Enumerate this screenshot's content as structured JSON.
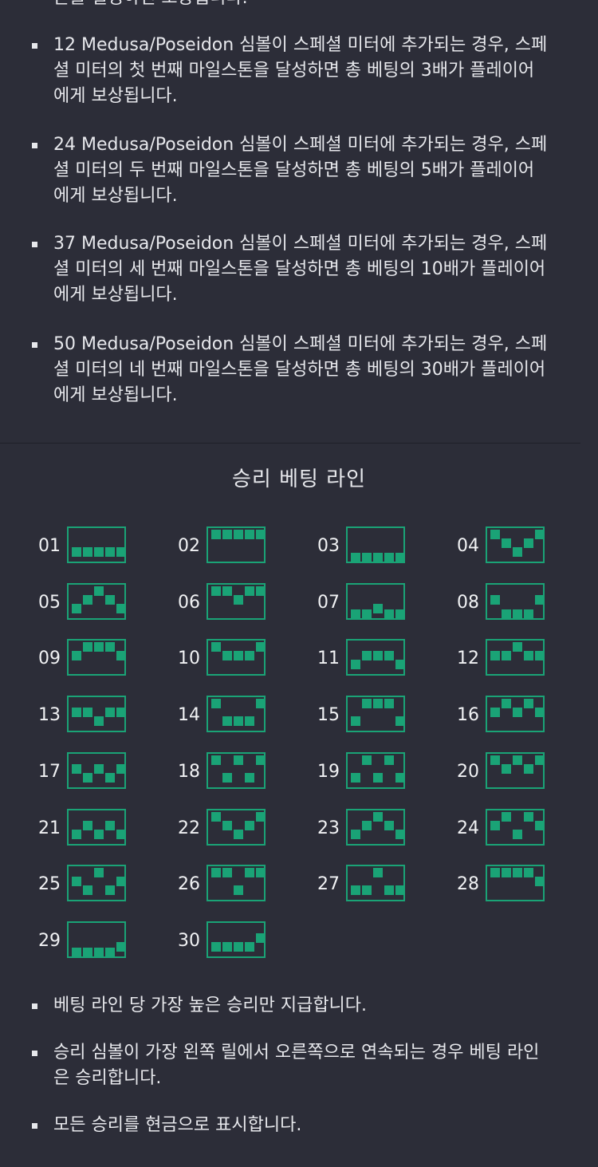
{
  "top_partial": "는을 절정하면 보상됩니다.",
  "rules_top": [
    "12 Medusa/Poseidon 심볼이 스페셜 미터에 추가되는 경우, 스페셜 미터의 첫 번째 마일스톤을 달성하면 총 베팅의 3배가 플레이어에게 보상됩니다.",
    "24 Medusa/Poseidon 심볼이 스페셜 미터에 추가되는 경우, 스페셜 미터의 두 번째 마일스톤을 달성하면 총 베팅의 5배가 플레이어에게 보상됩니다.",
    "37 Medusa/Poseidon 심볼이 스페셜 미터에 추가되는 경우, 스페셜 미터의 세 번째 마일스톤을 달성하면 총 베팅의 10배가 플레이어에게 보상됩니다.",
    "50 Medusa/Poseidon 심볼이 스페셜 미터에 추가되는 경우, 스페셜 미터의 네 번째 마일스톤을 달성하면 총 베팅의 30배가 플레이어에게 보상됩니다."
  ],
  "paylines_title": "승리 베팅 라인",
  "paylines": [
    {
      "num": "01",
      "rows": [
        2,
        2,
        2,
        2,
        2
      ]
    },
    {
      "num": "02",
      "rows": [
        0,
        0,
        0,
        0,
        0
      ]
    },
    {
      "num": "03",
      "rows": [
        3,
        3,
        3,
        3,
        3
      ]
    },
    {
      "num": "04",
      "rows": [
        0,
        1,
        2,
        1,
        0
      ]
    },
    {
      "num": "05",
      "rows": [
        2,
        1,
        0,
        1,
        2
      ]
    },
    {
      "num": "06",
      "rows": [
        0,
        0,
        1,
        0,
        0
      ]
    },
    {
      "num": "07",
      "rows": [
        3,
        3,
        2,
        3,
        3
      ]
    },
    {
      "num": "08",
      "rows": [
        1,
        3,
        3,
        3,
        1
      ]
    },
    {
      "num": "09",
      "rows": [
        1,
        0,
        0,
        0,
        1
      ]
    },
    {
      "num": "10",
      "rows": [
        0,
        1,
        1,
        1,
        0
      ]
    },
    {
      "num": "11",
      "rows": [
        2,
        1,
        1,
        1,
        2
      ]
    },
    {
      "num": "12",
      "rows": [
        1,
        1,
        0,
        1,
        1
      ]
    },
    {
      "num": "13",
      "rows": [
        1,
        1,
        2,
        1,
        1
      ]
    },
    {
      "num": "14",
      "rows": [
        0,
        2,
        2,
        2,
        0
      ]
    },
    {
      "num": "15",
      "rows": [
        2,
        0,
        0,
        0,
        2
      ]
    },
    {
      "num": "16",
      "rows": [
        1,
        0,
        1,
        0,
        1
      ]
    },
    {
      "num": "17",
      "rows": [
        1,
        2,
        1,
        2,
        1
      ]
    },
    {
      "num": "18",
      "rows": [
        0,
        2,
        0,
        2,
        0
      ]
    },
    {
      "num": "19",
      "rows": [
        2,
        0,
        2,
        0,
        2
      ]
    },
    {
      "num": "20",
      "rows": [
        0,
        1,
        0,
        1,
        0
      ]
    },
    {
      "num": "21",
      "rows": [
        2,
        1,
        2,
        1,
        2
      ]
    },
    {
      "num": "22",
      "rows": [
        0,
        1,
        2,
        1,
        0
      ]
    },
    {
      "num": "23",
      "rows": [
        2,
        1,
        0,
        1,
        2
      ]
    },
    {
      "num": "24",
      "rows": [
        1,
        0,
        2,
        0,
        1
      ]
    },
    {
      "num": "25",
      "rows": [
        1,
        2,
        0,
        2,
        1
      ]
    },
    {
      "num": "26",
      "rows": [
        0,
        0,
        2,
        0,
        0
      ]
    },
    {
      "num": "27",
      "rows": [
        2,
        2,
        0,
        2,
        2
      ]
    },
    {
      "num": "28",
      "rows": [
        0,
        0,
        0,
        0,
        1
      ]
    },
    {
      "num": "29",
      "rows": [
        3,
        3,
        3,
        3,
        2
      ]
    },
    {
      "num": "30",
      "rows": [
        2,
        2,
        2,
        2,
        1
      ]
    }
  ],
  "rules_bottom": [
    "베팅 라인 당 가장 높은 승리만 지급합니다.",
    "승리 심볼이 가장 왼쪽 릴에서 오른쪽으로 연속되는 경우 베팅 라인은 승리합니다.",
    "모든 승리를 현금으로 표시합니다."
  ],
  "colors": {
    "background": "#2c2d38",
    "accent": "#1aa376",
    "text": "#e7e8ec"
  }
}
